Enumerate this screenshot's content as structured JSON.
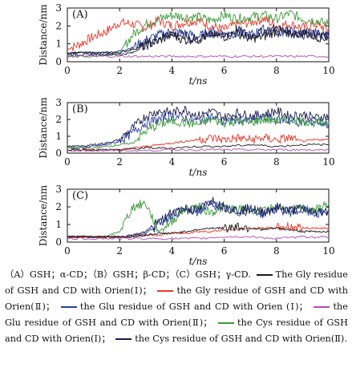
{
  "colors": {
    "black": "#1a1a1a",
    "red": "#e8392b",
    "blue": "#2a3ea0",
    "purple": "#b04bb0",
    "green": "#3a9a3a",
    "navy": "#1c1c4e"
  },
  "chart_data": [
    {
      "type": "line",
      "panel_label": "(A)",
      "xlabel": "t/ns",
      "ylabel": "Distance/nm",
      "xlim": [
        0,
        10
      ],
      "ylim": [
        0,
        3
      ],
      "xticks": [
        "0",
        "2",
        "4",
        "6",
        "8",
        "10"
      ],
      "yticks": [
        "0",
        "1",
        "2",
        "3"
      ],
      "series": [
        {
          "color_key": "red",
          "x": [
            0,
            0.5,
            1,
            1.5,
            2,
            2.5,
            3,
            3.5,
            4,
            4.5,
            5,
            5.5,
            6,
            6.5,
            7,
            7.5,
            8,
            8.5,
            9,
            9.5,
            10
          ],
          "y": [
            0.7,
            1.0,
            1.4,
            1.7,
            2.2,
            2.1,
            1.9,
            2.3,
            2.0,
            2.2,
            2.3,
            2.0,
            1.8,
            2.1,
            2.2,
            2.4,
            2.0,
            2.1,
            1.9,
            2.1,
            1.8
          ]
        },
        {
          "color_key": "green",
          "x": [
            0,
            0.5,
            1,
            1.5,
            2,
            2.5,
            3,
            3.5,
            4,
            4.5,
            5,
            5.5,
            6,
            6.5,
            7,
            7.5,
            8,
            8.5,
            9,
            9.5,
            10
          ],
          "y": [
            0.3,
            0.3,
            0.3,
            0.4,
            0.5,
            1.5,
            2.1,
            2.4,
            2.6,
            2.5,
            2.5,
            2.3,
            2.6,
            2.4,
            2.5,
            2.6,
            2.4,
            2.7,
            2.4,
            2.3,
            2.1
          ]
        },
        {
          "color_key": "blue",
          "x": [
            0,
            0.5,
            1,
            1.5,
            2,
            2.5,
            3,
            3.5,
            4,
            4.5,
            5,
            5.5,
            6,
            6.5,
            7,
            7.5,
            8,
            8.5,
            9,
            9.5,
            10
          ],
          "y": [
            0.5,
            0.5,
            0.5,
            0.5,
            0.6,
            0.8,
            1.2,
            1.5,
            1.7,
            1.6,
            1.4,
            1.7,
            1.5,
            1.6,
            1.5,
            1.8,
            1.6,
            1.7,
            1.5,
            1.6,
            1.4
          ]
        },
        {
          "color_key": "black",
          "x": [
            0,
            0.5,
            1,
            1.5,
            2,
            2.5,
            3,
            3.5,
            4,
            4.5,
            5,
            5.5,
            6,
            6.5,
            7,
            7.5,
            8,
            8.5,
            9,
            9.5,
            10
          ],
          "y": [
            0.5,
            0.5,
            0.5,
            0.5,
            0.5,
            0.7,
            0.9,
            1.2,
            1.5,
            1.2,
            1.3,
            1.5,
            1.4,
            1.6,
            1.3,
            1.4,
            1.7,
            1.5,
            1.6,
            1.4,
            1.3
          ]
        },
        {
          "color_key": "navy",
          "x": [
            0,
            0.5,
            1,
            1.5,
            2,
            2.5,
            3,
            3.5,
            4,
            4.5,
            5,
            5.5,
            6,
            6.5,
            7,
            7.5,
            8,
            8.5,
            9,
            9.5,
            10
          ],
          "y": [
            0.4,
            0.4,
            0.4,
            0.4,
            0.4,
            0.5,
            1.0,
            1.3,
            1.6,
            1.4,
            1.2,
            1.6,
            1.5,
            1.8,
            1.4,
            1.7,
            1.9,
            1.6,
            1.7,
            1.5,
            1.4
          ]
        },
        {
          "color_key": "purple",
          "x": [
            0,
            1,
            2,
            3,
            4,
            5,
            6,
            7,
            8,
            9,
            10
          ],
          "y": [
            0.3,
            0.3,
            0.3,
            0.3,
            0.3,
            0.3,
            0.3,
            0.3,
            0.3,
            0.3,
            0.3
          ]
        }
      ]
    },
    {
      "type": "line",
      "panel_label": "(B)",
      "xlabel": "t/ns",
      "ylabel": "Distance/nm",
      "xlim": [
        0,
        10
      ],
      "ylim": [
        0,
        3
      ],
      "xticks": [
        "0",
        "2",
        "4",
        "6",
        "8",
        "10"
      ],
      "yticks": [
        "0",
        "1",
        "2",
        "3"
      ],
      "series": [
        {
          "color_key": "navy",
          "x": [
            0,
            0.5,
            1,
            1.5,
            2,
            2.5,
            3,
            3.5,
            4,
            4.5,
            5,
            5.5,
            6,
            6.5,
            7,
            7.5,
            8,
            8.5,
            9,
            9.5,
            10
          ],
          "y": [
            0.4,
            0.4,
            0.5,
            0.6,
            0.8,
            1.5,
            2.2,
            2.5,
            2.4,
            2.6,
            2.2,
            2.5,
            2.1,
            2.4,
            2.2,
            2.3,
            2.5,
            2.2,
            2.3,
            2.1,
            2.2
          ]
        },
        {
          "color_key": "blue",
          "x": [
            0,
            0.5,
            1,
            1.5,
            2,
            2.5,
            3,
            3.5,
            4,
            4.5,
            5,
            5.5,
            6,
            6.5,
            7,
            7.5,
            8,
            8.5,
            9,
            9.5,
            10
          ],
          "y": [
            0.3,
            0.3,
            0.4,
            0.5,
            0.7,
            1.2,
            1.8,
            2.0,
            2.2,
            2.1,
            1.9,
            2.2,
            1.8,
            2.0,
            1.9,
            2.1,
            2.0,
            1.9,
            1.8,
            1.9,
            1.7
          ]
        },
        {
          "color_key": "green",
          "x": [
            0,
            0.5,
            1,
            1.5,
            2,
            2.5,
            3,
            3.5,
            4,
            4.5,
            5,
            5.5,
            6,
            6.5,
            7,
            7.5,
            8,
            8.5,
            9,
            9.5,
            10
          ],
          "y": [
            0.3,
            0.3,
            0.3,
            0.4,
            0.5,
            0.6,
            1.3,
            1.7,
            1.9,
            1.8,
            1.7,
            2.0,
            1.8,
            1.9,
            1.8,
            2.0,
            1.9,
            2.0,
            1.9,
            1.8,
            1.8
          ]
        },
        {
          "color_key": "red",
          "x": [
            0,
            0.5,
            1,
            1.5,
            2,
            2.5,
            3,
            3.5,
            4,
            4.5,
            5,
            5.5,
            6,
            6.5,
            7,
            7.5,
            8,
            8.5,
            9,
            9.5,
            10
          ],
          "y": [
            0.2,
            0.2,
            0.2,
            0.2,
            0.2,
            0.3,
            0.4,
            0.5,
            0.6,
            0.7,
            0.8,
            0.9,
            0.8,
            0.9,
            0.8,
            0.9,
            0.8,
            0.9,
            0.7,
            0.8,
            0.8
          ]
        },
        {
          "color_key": "black",
          "x": [
            0,
            1,
            2,
            3,
            4,
            5,
            6,
            7,
            8,
            9,
            10
          ],
          "y": [
            0.2,
            0.2,
            0.2,
            0.3,
            0.3,
            0.4,
            0.4,
            0.5,
            0.4,
            0.5,
            0.5
          ]
        },
        {
          "color_key": "purple",
          "x": [
            0,
            1,
            2,
            3,
            4,
            5,
            6,
            7,
            8,
            9,
            10
          ],
          "y": [
            0.15,
            0.15,
            0.15,
            0.15,
            0.2,
            0.2,
            0.2,
            0.2,
            0.2,
            0.2,
            0.2
          ]
        }
      ]
    },
    {
      "type": "line",
      "panel_label": "(C)",
      "xlabel": "t/ns",
      "ylabel": "Distance/nm",
      "xlim": [
        0,
        10
      ],
      "ylim": [
        0,
        3
      ],
      "xticks": [
        "0",
        "2",
        "4",
        "6",
        "8",
        "10"
      ],
      "yticks": [
        "0",
        "1",
        "2",
        "3"
      ],
      "series": [
        {
          "color_key": "green",
          "x": [
            0,
            0.5,
            1,
            1.5,
            2,
            2.5,
            3,
            3.5,
            4,
            4.5,
            5,
            5.5,
            6,
            6.5,
            7,
            7.5,
            8,
            8.5,
            9,
            9.5,
            10
          ],
          "y": [
            0.3,
            0.3,
            0.3,
            0.3,
            0.6,
            2.0,
            2.2,
            0.6,
            1.2,
            1.9,
            2.0,
            1.7,
            2.0,
            1.8,
            1.9,
            1.7,
            2.0,
            1.8,
            1.9,
            1.8,
            2.2
          ]
        },
        {
          "color_key": "blue",
          "x": [
            0,
            0.5,
            1,
            1.5,
            2,
            2.5,
            3,
            3.5,
            4,
            4.5,
            5,
            5.5,
            6,
            6.5,
            7,
            7.5,
            8,
            8.5,
            9,
            9.5,
            10
          ],
          "y": [
            0.3,
            0.3,
            0.3,
            0.3,
            0.3,
            0.4,
            0.5,
            1.0,
            1.6,
            1.8,
            1.7,
            2.2,
            1.9,
            1.7,
            1.8,
            1.6,
            1.9,
            1.7,
            1.8,
            1.6,
            1.7
          ]
        },
        {
          "color_key": "navy",
          "x": [
            0,
            0.5,
            1,
            1.5,
            2,
            2.5,
            3,
            3.5,
            4,
            4.5,
            5,
            5.5,
            6,
            6.5,
            7,
            7.5,
            8,
            8.5,
            9,
            9.5,
            10
          ],
          "y": [
            0.3,
            0.3,
            0.3,
            0.3,
            0.3,
            0.4,
            0.6,
            1.1,
            1.7,
            1.9,
            1.8,
            2.4,
            2.0,
            1.8,
            1.9,
            1.7,
            2.0,
            1.8,
            1.9,
            1.7,
            1.8
          ]
        },
        {
          "color_key": "red",
          "x": [
            0,
            0.5,
            1,
            1.5,
            2,
            2.5,
            3,
            3.5,
            4,
            4.5,
            5,
            5.5,
            6,
            6.5,
            7,
            7.5,
            8,
            8.5,
            9,
            9.5,
            10
          ],
          "y": [
            0.3,
            0.3,
            0.3,
            0.3,
            0.3,
            0.3,
            0.4,
            0.4,
            0.5,
            0.5,
            0.6,
            0.6,
            0.7,
            0.7,
            0.8,
            0.8,
            0.8,
            0.9,
            0.8,
            0.8,
            0.8
          ]
        },
        {
          "color_key": "black",
          "x": [
            0,
            0.5,
            1,
            1.5,
            2,
            2.5,
            3,
            3.5,
            4,
            4.5,
            5,
            5.5,
            6,
            6.5,
            7,
            7.5,
            8,
            8.5,
            9,
            9.5,
            10
          ],
          "y": [
            0.3,
            0.3,
            0.3,
            0.3,
            0.3,
            0.3,
            0.4,
            0.5,
            0.5,
            0.6,
            0.7,
            0.8,
            0.8,
            0.9,
            0.8,
            0.7,
            0.8,
            0.7,
            0.6,
            0.6,
            0.6
          ]
        },
        {
          "color_key": "purple",
          "x": [
            0,
            1,
            2,
            3,
            4,
            5,
            6,
            7,
            8,
            9,
            10
          ],
          "y": [
            0.2,
            0.2,
            0.2,
            0.2,
            0.2,
            0.2,
            0.3,
            0.3,
            0.2,
            0.3,
            0.3
          ]
        }
      ]
    }
  ],
  "caption": {
    "p1": "（A）GSH；α-CD；（B）GSH；β-CD；（C）GSH；γ-CD.",
    "p2": "The Gly residue of GSH and CD with Orien(Ⅰ)；",
    "p3": "the Gly residue of GSH and CD with Orien(Ⅱ)；",
    "p4": "the Glu residue of GSH and CD with Orien (Ⅰ)；",
    "p5": "the Glu residue of GSH and CD with Orien(Ⅱ)；",
    "p6": "the Cys residue of GSH and CD with Orien(Ⅰ)；",
    "p7": "the Cys residue of GSH and CD with Orien(Ⅱ)."
  }
}
